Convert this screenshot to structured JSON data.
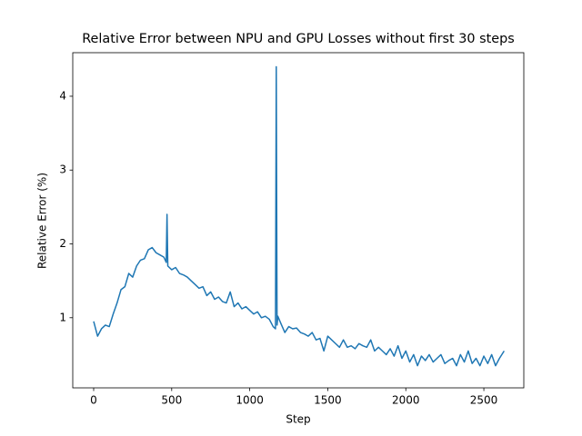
{
  "chart_data": {
    "type": "line",
    "title": "Relative Error between NPU and GPU Losses without first 30 steps",
    "xlabel": "Step",
    "ylabel": "Relative Error (%)",
    "x": [
      0,
      25,
      50,
      75,
      100,
      125,
      150,
      175,
      200,
      225,
      250,
      275,
      300,
      325,
      350,
      375,
      400,
      425,
      450,
      465,
      470,
      475,
      500,
      525,
      550,
      575,
      600,
      625,
      650,
      675,
      700,
      725,
      750,
      775,
      800,
      825,
      850,
      875,
      900,
      925,
      950,
      975,
      1000,
      1025,
      1050,
      1075,
      1100,
      1125,
      1150,
      1165,
      1170,
      1175,
      1180,
      1200,
      1225,
      1250,
      1275,
      1300,
      1325,
      1350,
      1375,
      1400,
      1425,
      1450,
      1475,
      1500,
      1525,
      1550,
      1575,
      1600,
      1625,
      1650,
      1675,
      1700,
      1725,
      1750,
      1775,
      1800,
      1825,
      1850,
      1875,
      1900,
      1925,
      1950,
      1975,
      2000,
      2025,
      2050,
      2075,
      2100,
      2125,
      2150,
      2175,
      2200,
      2225,
      2250,
      2275,
      2300,
      2325,
      2350,
      2375,
      2400,
      2425,
      2450,
      2475,
      2500,
      2525,
      2550,
      2575,
      2600,
      2630
    ],
    "series": [
      {
        "color": "#1f77b4",
        "values": [
          0.95,
          0.75,
          0.85,
          0.9,
          0.88,
          1.05,
          1.2,
          1.38,
          1.42,
          1.6,
          1.55,
          1.7,
          1.78,
          1.8,
          1.92,
          1.95,
          1.88,
          1.85,
          1.82,
          1.75,
          2.4,
          1.7,
          1.65,
          1.68,
          1.6,
          1.58,
          1.55,
          1.5,
          1.45,
          1.4,
          1.42,
          1.3,
          1.35,
          1.25,
          1.28,
          1.22,
          1.2,
          1.35,
          1.15,
          1.2,
          1.12,
          1.15,
          1.1,
          1.05,
          1.08,
          1.0,
          1.02,
          0.98,
          0.88,
          0.85,
          4.4,
          0.9,
          1.02,
          0.92,
          0.8,
          0.88,
          0.85,
          0.86,
          0.8,
          0.78,
          0.75,
          0.8,
          0.7,
          0.72,
          0.55,
          0.75,
          0.7,
          0.65,
          0.6,
          0.7,
          0.6,
          0.62,
          0.58,
          0.65,
          0.62,
          0.6,
          0.7,
          0.55,
          0.6,
          0.55,
          0.5,
          0.58,
          0.48,
          0.62,
          0.45,
          0.55,
          0.4,
          0.5,
          0.35,
          0.48,
          0.42,
          0.5,
          0.4,
          0.45,
          0.5,
          0.38,
          0.42,
          0.45,
          0.35,
          0.5,
          0.4,
          0.55,
          0.38,
          0.45,
          0.35,
          0.48,
          0.38,
          0.5,
          0.35,
          0.45,
          0.55
        ]
      }
    ],
    "xlim": [
      -134,
      2756
    ],
    "ylim": [
      0.05,
      4.59
    ],
    "xticks": [
      0,
      500,
      1000,
      1500,
      2000,
      2500
    ],
    "yticks": [
      1,
      2,
      3,
      4
    ]
  }
}
